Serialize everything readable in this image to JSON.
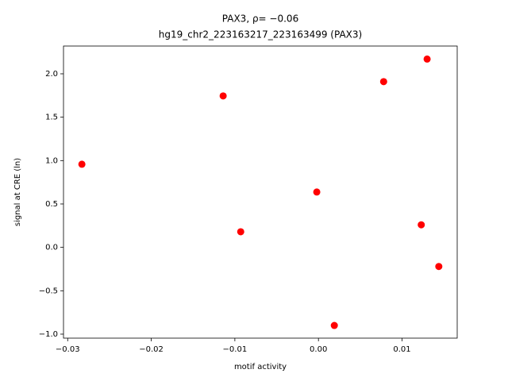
{
  "chart_data": {
    "type": "scatter",
    "title": "PAX3, ρ= −0.06",
    "subtitle": "hg19_chr2_223163217_223163499 (PAX3)",
    "x_label": "motif activity",
    "y_label": "signal at CRE (ln)",
    "series": [
      {
        "color": "#ff0000",
        "x": [
          -0.0283,
          -0.0114,
          -0.0093,
          -0.0002,
          0.0019,
          0.0078,
          0.0123,
          0.013,
          0.0144
        ],
        "values": [
          0.958,
          1.745,
          0.18,
          0.638,
          -0.9,
          1.91,
          0.26,
          2.17,
          -0.22
        ]
      }
    ],
    "xlim": [
      -0.0305,
      0.0166
    ],
    "ylim": [
      -1.046,
      2.32
    ],
    "xticks": [
      {
        "value": -0.03,
        "label": "−0.03"
      },
      {
        "value": -0.02,
        "label": "−0.02"
      },
      {
        "value": -0.01,
        "label": "−0.01"
      },
      {
        "value": 0,
        "label": "0.00"
      },
      0.01
    ],
    "yticks": [
      {
        "value": -1,
        "label": "−1.0"
      },
      {
        "value": -0.5,
        "label": "−0.5"
      },
      {
        "value": 0,
        "label": "0.0"
      },
      0.5,
      {
        "value": 1,
        "label": "1.0"
      },
      1.5,
      {
        "value": 2,
        "label": "2.0"
      }
    ],
    "grid": false
  }
}
